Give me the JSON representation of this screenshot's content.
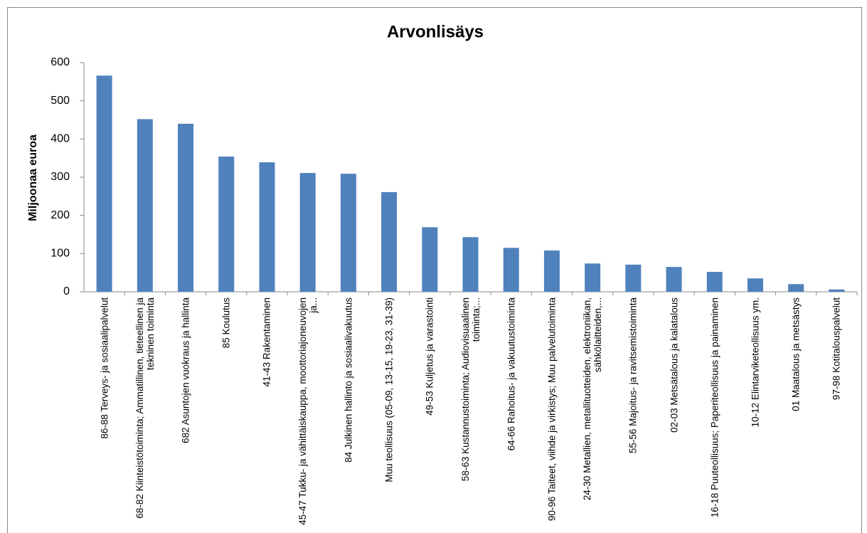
{
  "chart_data": {
    "type": "bar",
    "title": "Arvonlisäys",
    "y_label": "Miljoonaa euroa",
    "categories": [
      "86-88 Terveys- ja sosiaalipalvelut",
      "68-82 Kiinteistötoiminta; Ammatillinen, tieteellinen ja tekninen toiminta",
      "682 Asuntojen vuokraus ja hallinta",
      "85 Koulutus",
      "41-43 Rakentaminen",
      "45-47 Tukku- ja vähittäiskauppa, moottoriajoneuvojen ja...",
      "84 Julkinen hallinto ja sosiaalivakuutus",
      "Muu teollisuus (05-09, 13-15, 19-23, 31-39)",
      "49-53 Kuljetus ja varastointi",
      "58-63 Kustannustoiminta; Audiovisuaalinen toiminta;...",
      "64-66 Rahoitus- ja vakuutustoiminta",
      "90-96 Taiteet, viihde ja virkistys; Muu palvelutoiminta",
      "24-30 Metallien, metallituotteiden, elektroniikan, sähkölaitteiden,...",
      "55-56 Majoitus- ja ravitsemistoiminta",
      "02-03 Metsätalous ja kalatalous",
      "16-18 Puuteollisuus; Paperiteollisuus ja painaminen",
      "10-12 Elintarviketeollisuus ym.",
      "01 Maatalous ja metsästys",
      "97-98 Kotitalouspalvelut"
    ],
    "values": [
      566,
      452,
      440,
      354,
      339,
      311,
      309,
      261,
      169,
      143,
      115,
      108,
      74,
      71,
      65,
      52,
      35,
      20,
      6
    ],
    "color": "#4f81bd",
    "ylim": [
      0,
      600
    ],
    "yticks": [
      0,
      100,
      200,
      300,
      400,
      500,
      600
    ],
    "grid": false
  }
}
